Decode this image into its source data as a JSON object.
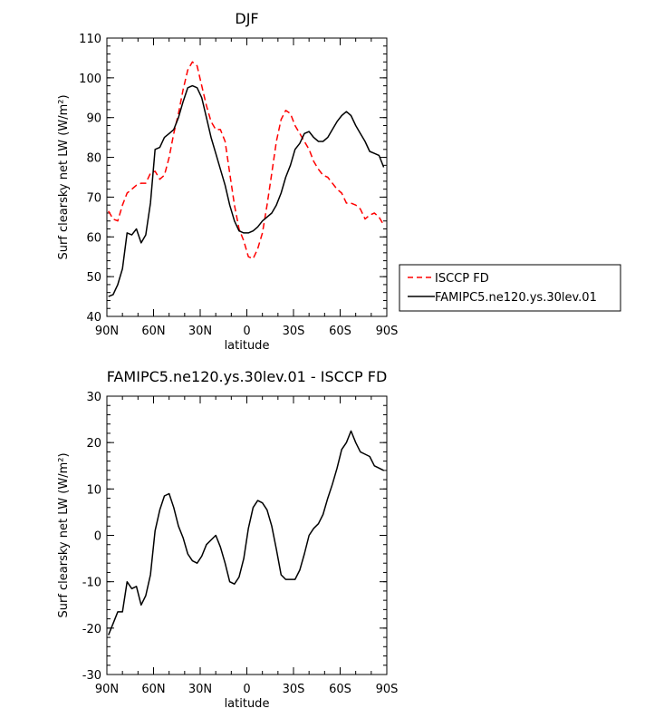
{
  "chart_data": [
    {
      "type": "line",
      "title": "DJF",
      "xlabel": "latitude",
      "ylabel": "Surf clearsky net LW (W/m²)",
      "xlim": [
        90,
        -90
      ],
      "ylim": [
        40,
        110
      ],
      "xticks": [
        90,
        60,
        30,
        0,
        -30,
        -60,
        -90
      ],
      "xtick_labels": [
        "90N",
        "60N",
        "30N",
        "0",
        "30S",
        "60S",
        "90S"
      ],
      "yticks": [
        40,
        50,
        60,
        70,
        80,
        90,
        100,
        110
      ],
      "ytick_labels": [
        "40",
        "50",
        "60",
        "70",
        "80",
        "90",
        "100",
        "110"
      ],
      "grid": false,
      "legend_position": "right",
      "series": [
        {
          "name": "ISCCP FD",
          "color": "#ff0000",
          "dash": "dashed",
          "x": [
            89,
            86,
            83,
            80,
            77,
            74,
            71,
            68,
            65,
            62,
            59,
            56,
            53,
            50,
            47,
            44,
            41,
            38,
            35,
            32,
            29,
            26,
            23,
            20,
            17,
            14,
            11,
            8,
            5,
            2,
            -1,
            -4,
            -7,
            -10,
            -13,
            -16,
            -19,
            -22,
            -25,
            -28,
            -31,
            -34,
            -37,
            -40,
            -43,
            -46,
            -49,
            -52,
            -55,
            -58,
            -61,
            -64,
            -67,
            -70,
            -73,
            -76,
            -79,
            -82,
            -85,
            -88
          ],
          "y": [
            66.5,
            64.5,
            64,
            68,
            71,
            72,
            73,
            73.5,
            73.5,
            76,
            76.5,
            74.5,
            75.5,
            80,
            86,
            91,
            97,
            102,
            104,
            103,
            98,
            93,
            89,
            87,
            87,
            84,
            76,
            68,
            62,
            59,
            55,
            54.5,
            57,
            61,
            68,
            76,
            84,
            89.5,
            91.8,
            91,
            88,
            86,
            84,
            82,
            79,
            77,
            75.5,
            75,
            73.5,
            72,
            71,
            68.5,
            68.5,
            68,
            67,
            64.5,
            65.5,
            66,
            65,
            63
          ]
        },
        {
          "name": "FAMIPC5.ne120.ys.30lev.01",
          "color": "#000000",
          "dash": "solid",
          "x": [
            89,
            86,
            83,
            80,
            77,
            74,
            71,
            68,
            65,
            62,
            59,
            56,
            53,
            50,
            47,
            44,
            41,
            38,
            35,
            32,
            29,
            26,
            23,
            20,
            17,
            14,
            11,
            8,
            5,
            2,
            -1,
            -4,
            -7,
            -10,
            -13,
            -16,
            -19,
            -22,
            -25,
            -28,
            -31,
            -34,
            -37,
            -40,
            -43,
            -46,
            -49,
            -52,
            -55,
            -58,
            -61,
            -64,
            -67,
            -70,
            -73,
            -76,
            -79,
            -82,
            -85,
            -88
          ],
          "y": [
            45,
            45.5,
            48,
            52,
            61,
            60.5,
            62,
            58.5,
            60.5,
            68.5,
            82,
            82.5,
            85,
            86,
            87,
            90,
            94,
            97.5,
            98,
            97.5,
            95,
            90,
            85,
            81,
            77,
            73,
            68,
            64,
            61.5,
            61,
            61,
            61.5,
            62.5,
            64,
            65,
            66,
            68,
            71,
            75,
            78,
            82,
            83.5,
            86,
            86.5,
            85,
            84,
            84,
            85,
            87,
            89,
            90.5,
            91.5,
            90.5,
            88,
            86,
            84,
            81.5,
            81,
            80.5,
            77.5
          ]
        }
      ]
    },
    {
      "type": "line",
      "title": "FAMIPC5.ne120.ys.30lev.01 - ISCCP FD",
      "xlabel": "latitude",
      "ylabel": "Surf clearsky net LW (W/m²)",
      "xlim": [
        90,
        -90
      ],
      "ylim": [
        -30,
        30
      ],
      "xticks": [
        90,
        60,
        30,
        0,
        -30,
        -60,
        -90
      ],
      "xtick_labels": [
        "90N",
        "60N",
        "30N",
        "0",
        "30S",
        "60S",
        "90S"
      ],
      "yticks": [
        -30,
        -20,
        -10,
        0,
        10,
        20,
        30
      ],
      "ytick_labels": [
        "-30",
        "-20",
        "-10",
        "0",
        "10",
        "20",
        "30"
      ],
      "grid": false,
      "series": [
        {
          "color": "#000000",
          "dash": "solid",
          "x": [
            89,
            86,
            83,
            80,
            77,
            74,
            71,
            68,
            65,
            62,
            59,
            56,
            53,
            50,
            47,
            44,
            41,
            38,
            35,
            32,
            29,
            26,
            23,
            20,
            17,
            14,
            11,
            8,
            5,
            2,
            -1,
            -4,
            -7,
            -10,
            -13,
            -16,
            -19,
            -22,
            -25,
            -28,
            -31,
            -34,
            -37,
            -40,
            -43,
            -46,
            -49,
            -52,
            -55,
            -58,
            -61,
            -64,
            -67,
            -70,
            -73,
            -76,
            -79,
            -82,
            -85,
            -88
          ],
          "y": [
            -21.5,
            -19,
            -16.5,
            -16.5,
            -10,
            -11.5,
            -11,
            -15,
            -13,
            -8.5,
            1,
            5.5,
            8.5,
            9,
            6,
            2,
            -0.5,
            -4,
            -5.5,
            -6,
            -4.5,
            -2,
            -1,
            0,
            -2.5,
            -6,
            -10,
            -10.5,
            -9,
            -5,
            1.5,
            6,
            7.5,
            7,
            5.5,
            2,
            -3,
            -8.5,
            -9.5,
            -9.5,
            -9.5,
            -7.5,
            -4,
            0,
            1.5,
            2.5,
            4.5,
            8,
            11,
            14.5,
            18.5,
            20,
            22.5,
            20,
            18,
            17.5,
            17,
            15,
            14.5,
            14
          ]
        }
      ]
    }
  ]
}
